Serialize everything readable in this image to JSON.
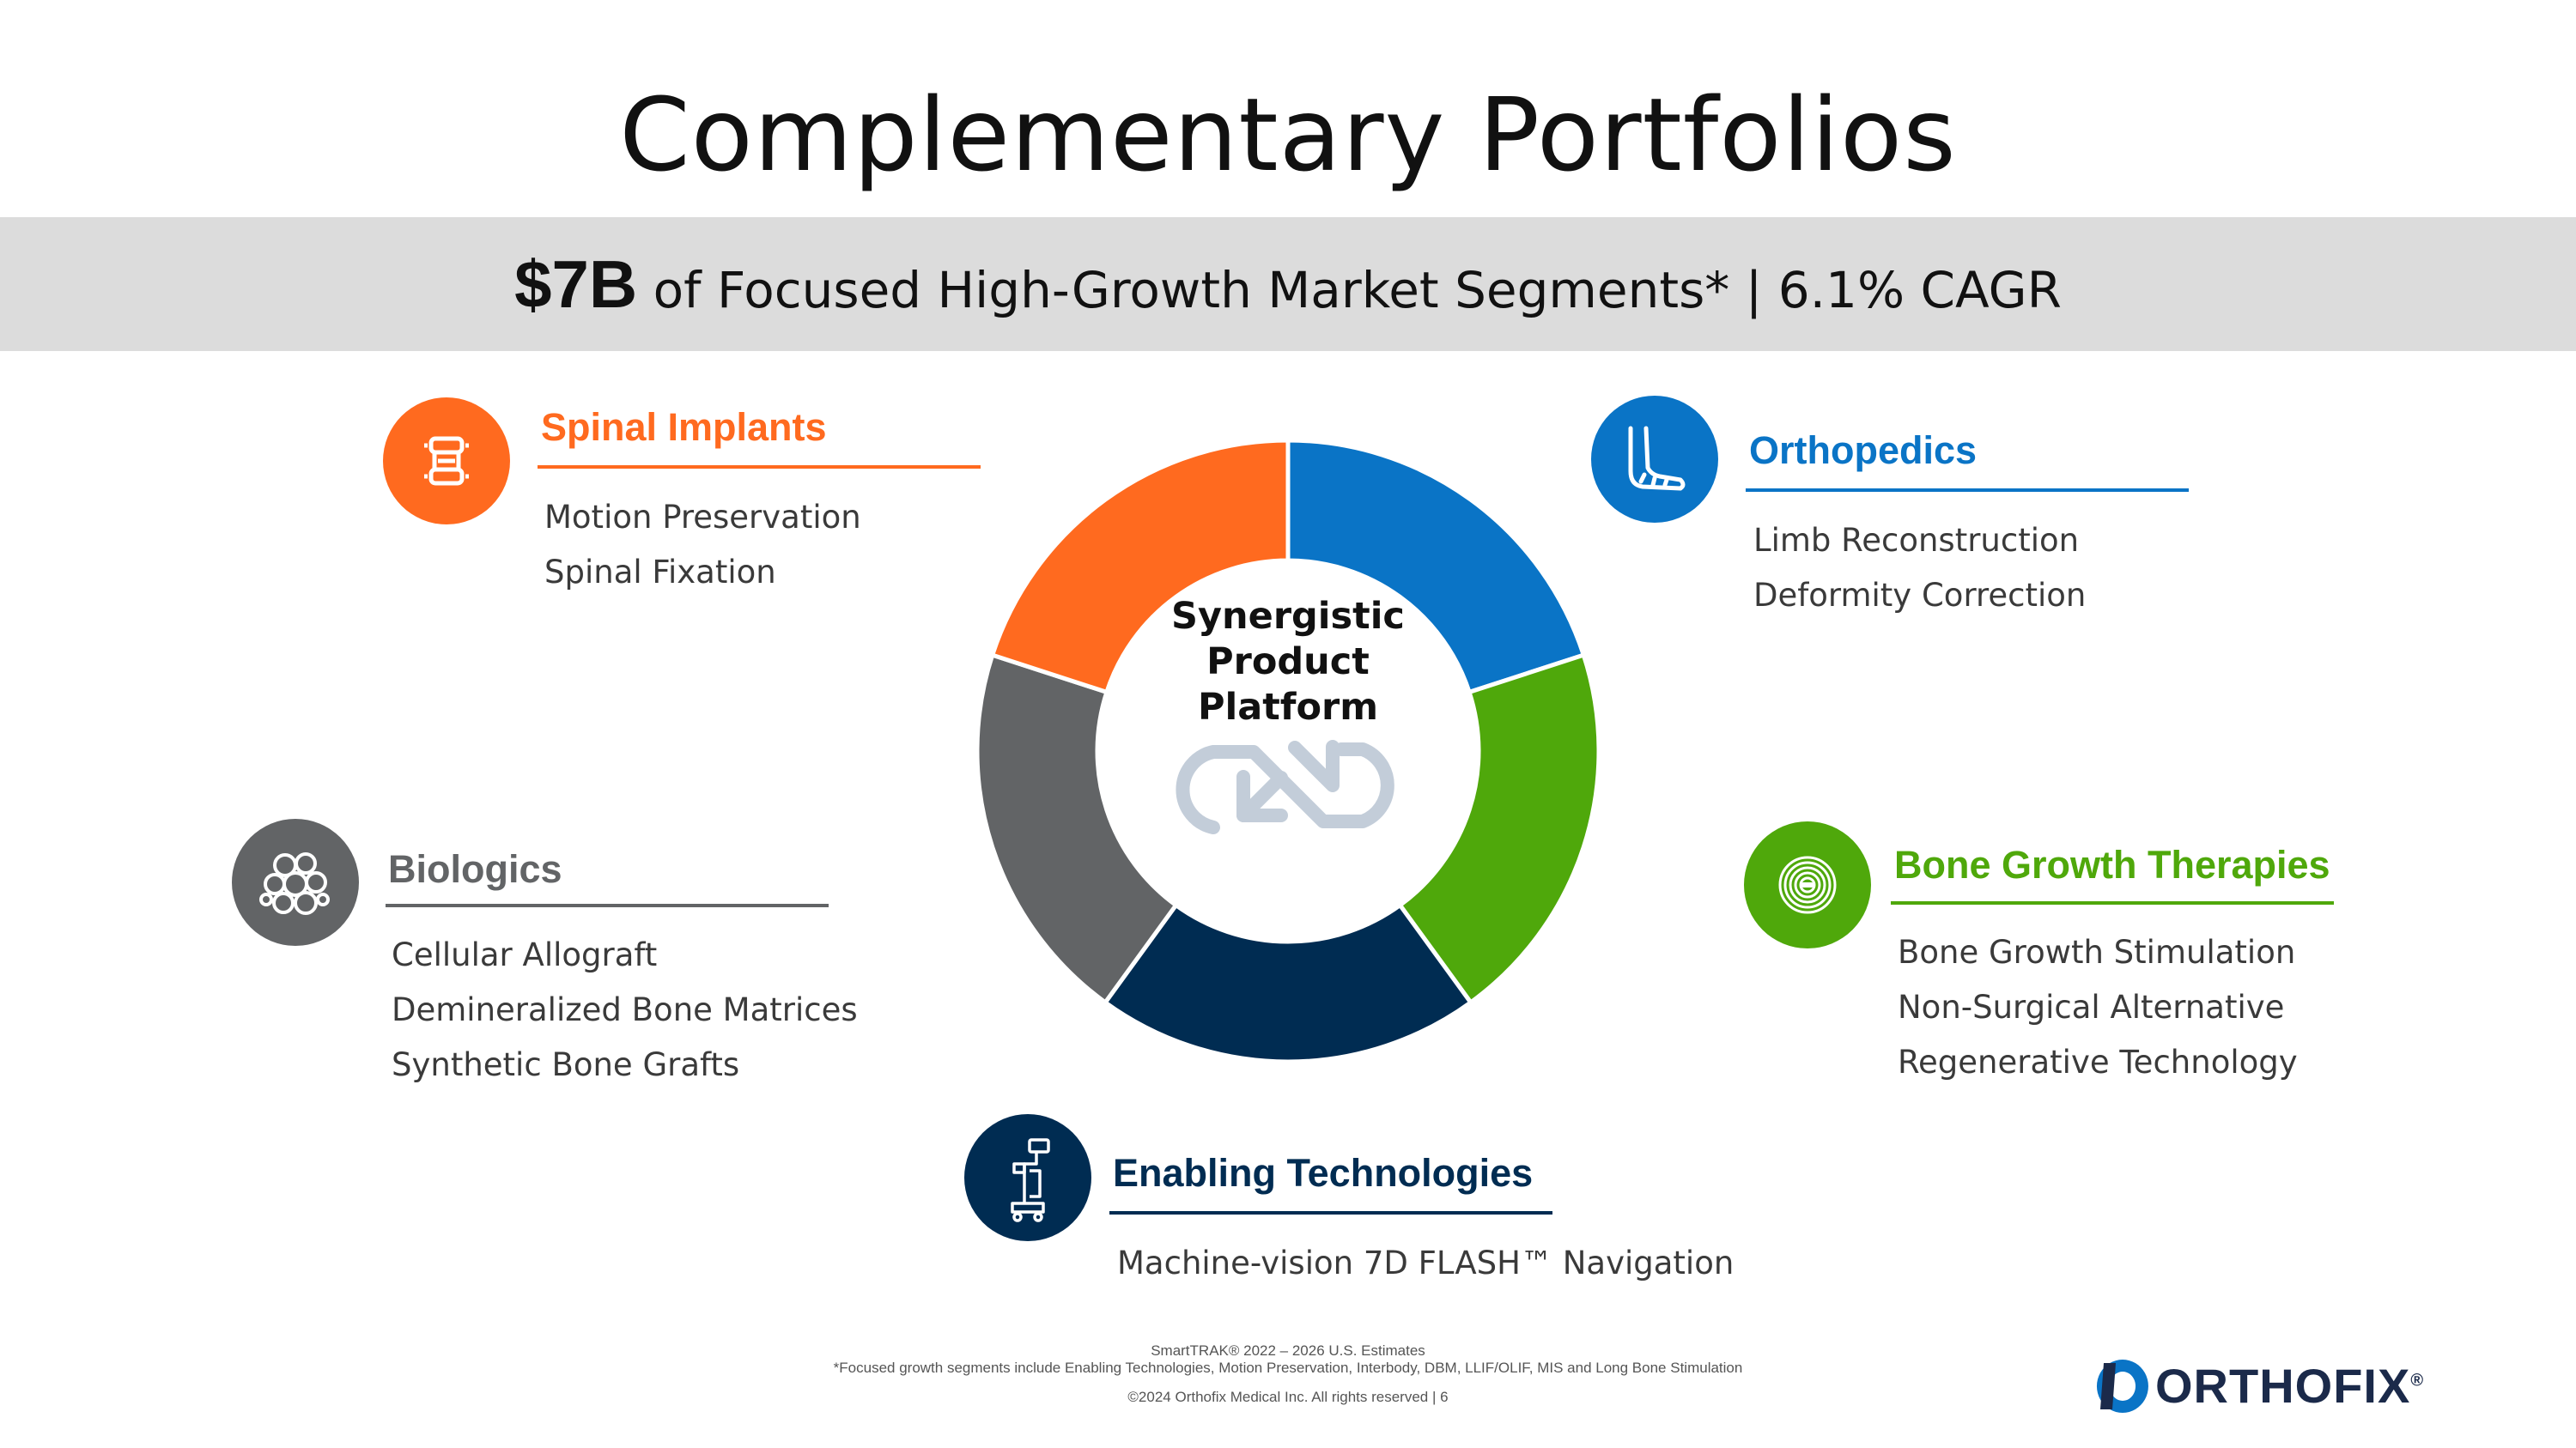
{
  "title": "Complementary Portfolios",
  "banner": {
    "highlight": "$7B",
    "text": "of Focused High-Growth Market Segments* | 6.1% CAGR"
  },
  "center": {
    "label_line1": "Synergistic",
    "label_line2": "Product",
    "label_line3": "Platform",
    "icon": "sync-arrows-icon"
  },
  "colors": {
    "spinal": "#ff6a1f",
    "ortho": "#0a74c6",
    "bone_growth": "#4fa80b",
    "enabling": "#002c52",
    "biologics": "#626466"
  },
  "segments": {
    "spinal": {
      "title": "Spinal Implants",
      "icon": "spine-icon",
      "items": [
        "Motion Preservation",
        "Spinal Fixation"
      ]
    },
    "ortho": {
      "title": "Orthopedics",
      "icon": "foot-bone-icon",
      "items": [
        "Limb Reconstruction",
        "Deformity Correction"
      ]
    },
    "biologics": {
      "title": "Biologics",
      "icon": "cells-icon",
      "items": [
        "Cellular Allograft",
        "Demineralized Bone Matrices",
        "Synthetic Bone Grafts"
      ]
    },
    "bone_growth": {
      "title": "Bone Growth Therapies",
      "icon": "concentric-rings-icon",
      "items": [
        "Bone Growth Stimulation",
        "Non-Surgical Alternative",
        "Regenerative Technology"
      ]
    },
    "enabling": {
      "title": "Enabling Technologies",
      "icon": "navigation-cart-icon",
      "items": [
        "Machine-vision 7D FLASH™ Navigation"
      ]
    }
  },
  "footer": {
    "source": "SmartTRAK® 2022 – 2026 U.S. Estimates",
    "note": "*Focused growth segments include Enabling Technologies, Motion Preservation, Interbody, DBM, LLIF/OLIF, MIS and Long Bone Stimulation",
    "copyright": "©2024 Orthofix Medical Inc. All rights reserved  |  6"
  },
  "logo": {
    "text": "ORTHOFIX",
    "mark": "®",
    "icon": "orthofix-logo-icon"
  }
}
